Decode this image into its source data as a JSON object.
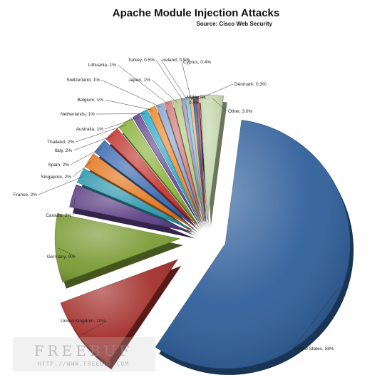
{
  "chart_data": {
    "type": "pie",
    "title": "Apache Module Injection Attacks",
    "subtitle": "Source: Cisco Web Security",
    "slices": [
      {
        "label": "United States",
        "value": 58,
        "display": "United States, 58%",
        "color": "#2f5f9a"
      },
      {
        "label": "United Kingdom",
        "value": 10,
        "display": "United Kingdom, 10%",
        "color": "#a3302c"
      },
      {
        "label": "Germany",
        "value": 9,
        "display": "Germany, 9%",
        "color": "#7c9c36"
      },
      {
        "label": "Canada",
        "value": 3,
        "display": "Canada, 3%",
        "color": "#5e4185"
      },
      {
        "label": "France",
        "value": 2,
        "display": "France, 2%",
        "color": "#2f98ae"
      },
      {
        "label": "Singapore",
        "value": 2,
        "display": "Singapore, 2%",
        "color": "#e37820"
      },
      {
        "label": "Spain",
        "value": 2,
        "display": "Spain, 2%",
        "color": "#3d6bb0"
      },
      {
        "label": "Italy",
        "value": 2,
        "display": "Italy, 2%",
        "color": "#c23934"
      },
      {
        "label": "Thailand",
        "value": 2,
        "display": "Thailand, 2%",
        "color": "#8db33f"
      },
      {
        "label": "Australia",
        "value": 1,
        "display": "Australia, 1%",
        "color": "#6a4d93"
      },
      {
        "label": "Netherlands",
        "value": 1,
        "display": "Netherlands, 1%",
        "color": "#33a8c4"
      },
      {
        "label": "Belgium",
        "value": 1,
        "display": "Belgium, 1%",
        "color": "#ef8b2e"
      },
      {
        "label": "Switzerland",
        "value": 1,
        "display": "Switzerland, 1%",
        "color": "#8ca6cf"
      },
      {
        "label": "Lithuania",
        "value": 1,
        "display": "Lithuania, 1%",
        "color": "#d17e7a"
      },
      {
        "label": "Japan",
        "value": 1,
        "display": "Japan, 1%",
        "color": "#b6cc86"
      },
      {
        "label": "Turkey",
        "value": 0.5,
        "display": "Turkey, 0.5%",
        "color": "#a493c2"
      },
      {
        "label": "Ireland",
        "value": 0.5,
        "display": "Ireland, 0.5%",
        "color": "#7ec5d8"
      },
      {
        "label": "Cyprus",
        "value": 0.4,
        "display": "Cyprus, 0.4%",
        "color": "#f4ad6e"
      },
      {
        "label": "Malaysia",
        "value": 0.4,
        "display": "Malaysia, 0.4%",
        "color": "#2c5a94"
      },
      {
        "label": "Denmark",
        "value": 0.3,
        "display": "Denmark, 0.3%",
        "color": "#b84a45"
      },
      {
        "label": "Other",
        "value": 3.0,
        "display": "Other, 3.0%",
        "color": "#c3d6ad"
      }
    ],
    "legend": "none"
  },
  "watermark": {
    "brand": "FREEBUF",
    "url": "HTTP://WWW.FREEBUF.COM"
  }
}
